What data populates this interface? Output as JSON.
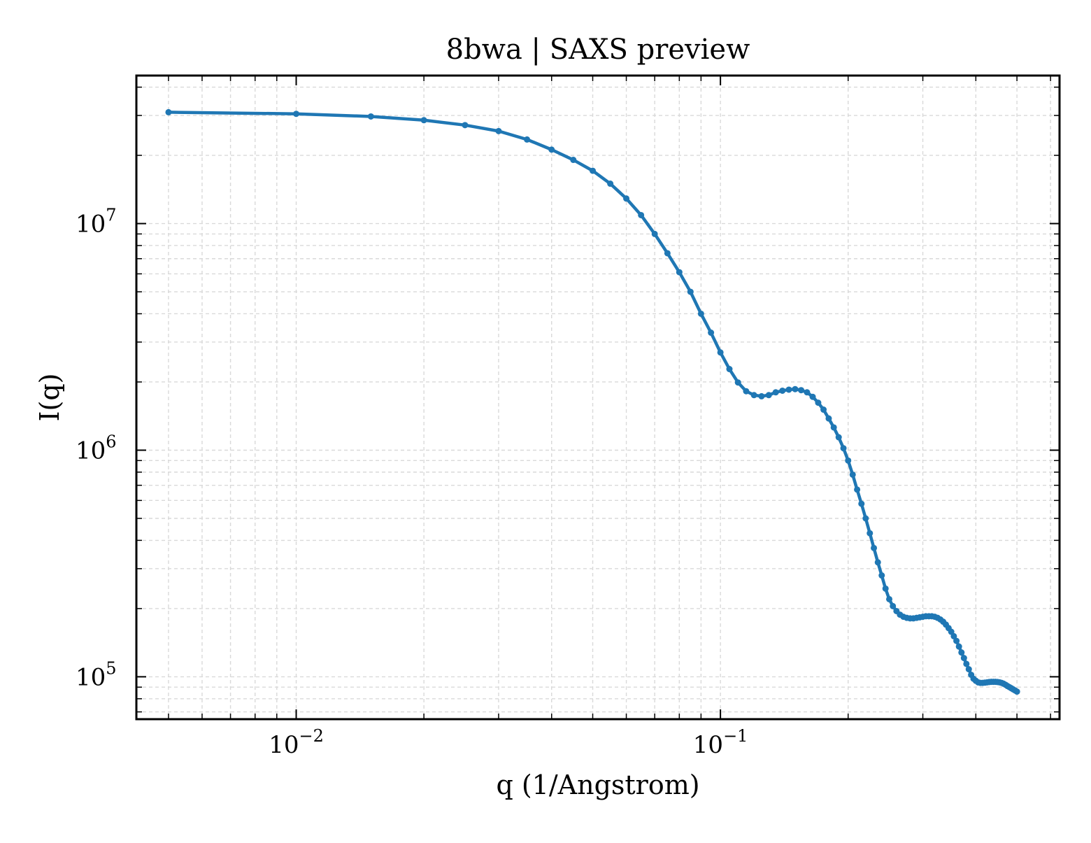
{
  "chart_data": {
    "type": "line",
    "title": "8bwa | SAXS preview",
    "xlabel": "q (1/Angstrom)",
    "ylabel": "I(q)",
    "xscale": "log",
    "yscale": "log",
    "xlim": [
      0.0042,
      0.63
    ],
    "ylim": [
      65000,
      45000000
    ],
    "grid": "on (major and minor, dashed)",
    "legend": "none",
    "line_color": "#1f77b4",
    "x_ticks": [
      {
        "value": 0.01,
        "base": "10",
        "exp": "−2"
      },
      {
        "value": 0.1,
        "base": "10",
        "exp": "−1"
      }
    ],
    "y_ticks": [
      {
        "value": 100000,
        "base": "10",
        "exp": "5"
      },
      {
        "value": 1000000,
        "base": "10",
        "exp": "6"
      },
      {
        "value": 10000000,
        "base": "10",
        "exp": "7"
      }
    ],
    "series": [
      {
        "x": [
          0.005,
          0.01,
          0.015,
          0.02,
          0.025,
          0.03,
          0.035,
          0.04,
          0.045,
          0.05,
          0.055,
          0.06,
          0.065,
          0.07,
          0.075,
          0.08,
          0.085,
          0.09,
          0.095,
          0.1,
          0.105,
          0.11,
          0.115,
          0.12,
          0.125,
          0.13,
          0.135,
          0.14,
          0.145,
          0.15,
          0.155,
          0.16,
          0.165,
          0.17,
          0.175,
          0.18,
          0.185,
          0.19,
          0.195,
          0.2,
          0.205,
          0.21,
          0.215,
          0.22,
          0.225,
          0.23,
          0.235,
          0.24,
          0.245,
          0.25,
          0.255,
          0.26,
          0.265,
          0.27,
          0.275,
          0.28,
          0.285,
          0.29,
          0.295,
          0.3,
          0.305,
          0.31,
          0.315,
          0.32,
          0.325,
          0.33,
          0.335,
          0.34,
          0.345,
          0.35,
          0.355,
          0.36,
          0.365,
          0.37,
          0.375,
          0.38,
          0.385,
          0.39,
          0.395,
          0.4,
          0.405,
          0.41,
          0.415,
          0.42,
          0.425,
          0.43,
          0.435,
          0.44,
          0.445,
          0.45,
          0.455,
          0.46,
          0.465,
          0.47,
          0.475,
          0.48,
          0.485,
          0.49,
          0.495,
          0.5
        ],
        "y": [
          31000000,
          30500000,
          29700000,
          28600000,
          27200000,
          25600000,
          23500000,
          21200000,
          19100000,
          17100000,
          15000000,
          12900000,
          10900000,
          9000000,
          7400000,
          6100000,
          5000000,
          4000000,
          3300000,
          2700000,
          2280000,
          1990000,
          1820000,
          1750000,
          1730000,
          1750000,
          1800000,
          1830000,
          1850000,
          1860000,
          1840000,
          1800000,
          1720000,
          1620000,
          1510000,
          1380000,
          1260000,
          1140000,
          1020000,
          900000,
          780000,
          670000,
          580000,
          500000,
          430000,
          370000,
          320000,
          280000,
          245000,
          220000,
          205000,
          195000,
          188000,
          184000,
          182000,
          181000,
          181000,
          182000,
          183000,
          184000,
          185000,
          185000,
          185000,
          184000,
          182000,
          179000,
          175000,
          170000,
          164000,
          158000,
          151000,
          144000,
          136000,
          128000,
          121000,
          114000,
          108000,
          102000,
          98000,
          96000,
          94500,
          94000,
          94000,
          94200,
          94500,
          94800,
          95000,
          95000,
          95000,
          94800,
          94500,
          94000,
          93200,
          92200,
          91000,
          90000,
          89000,
          88000,
          87000,
          86000
        ]
      }
    ]
  }
}
